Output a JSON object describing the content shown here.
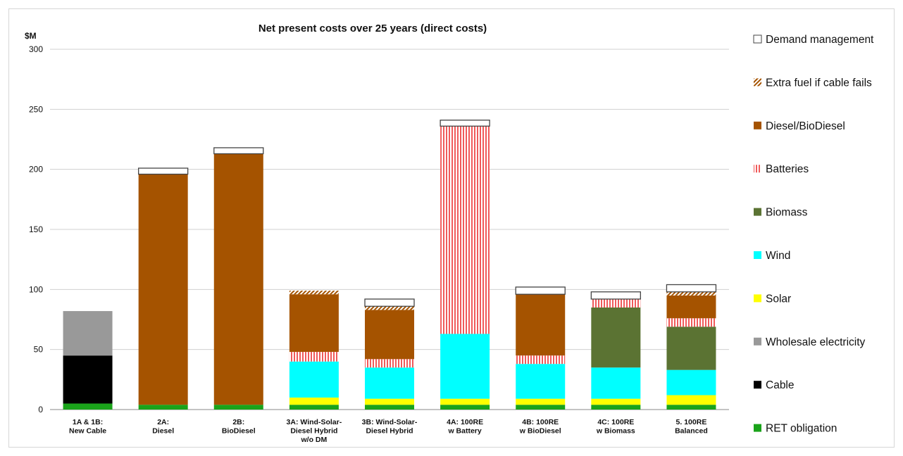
{
  "chart_data": {
    "type": "bar",
    "stacked": true,
    "title": "Net present costs over 25 years (direct costs)",
    "ylabel": "$M",
    "xlabel": "",
    "ylim": [
      0,
      300
    ],
    "yticks": [
      0,
      50,
      100,
      150,
      200,
      250,
      300
    ],
    "grid": true,
    "legend_position": "right",
    "categories": [
      [
        "1A & 1B:",
        "New Cable"
      ],
      [
        "2A:",
        "Diesel"
      ],
      [
        "2B:",
        "BioDiesel"
      ],
      [
        "3A: Wind-Solar-",
        "Diesel Hybrid",
        "w/o DM"
      ],
      [
        "3B: Wind-Solar-",
        "Diesel Hybrid"
      ],
      [
        "4A: 100RE",
        "w Battery"
      ],
      [
        "4B: 100RE",
        "w BioDiesel"
      ],
      [
        "4C: 100RE",
        "w Biomass"
      ],
      [
        "5. 100RE",
        "Balanced"
      ]
    ],
    "series": [
      {
        "name": "RET obligation",
        "color": "#1aa31a",
        "pattern": "solid",
        "values": [
          5,
          4,
          4,
          4,
          4,
          4,
          4,
          4,
          4
        ]
      },
      {
        "name": "Cable",
        "color": "#000000",
        "pattern": "solid",
        "values": [
          40,
          0,
          0,
          0,
          0,
          0,
          0,
          0,
          0
        ]
      },
      {
        "name": "Wholesale electricity",
        "color": "#999999",
        "pattern": "solid",
        "values": [
          37,
          0,
          0,
          0,
          0,
          0,
          0,
          0,
          0
        ]
      },
      {
        "name": "Solar",
        "color": "#ffff00",
        "pattern": "solid",
        "values": [
          0,
          0,
          0,
          6,
          5,
          5,
          5,
          5,
          8
        ]
      },
      {
        "name": "Wind",
        "color": "#00ffff",
        "pattern": "solid",
        "values": [
          0,
          0,
          0,
          30,
          26,
          54,
          29,
          26,
          21
        ]
      },
      {
        "name": "Biomass",
        "color": "#5b7333",
        "pattern": "solid",
        "values": [
          0,
          0,
          0,
          0,
          0,
          0,
          0,
          50,
          36
        ]
      },
      {
        "name": "Batteries",
        "color": "#f05a5a",
        "pattern": "vstripes",
        "values": [
          0,
          0,
          0,
          8,
          7,
          173,
          7,
          7,
          7
        ]
      },
      {
        "name": "Diesel/BioDiesel",
        "color": "#a55300",
        "pattern": "solid",
        "values": [
          0,
          192,
          209,
          48,
          41,
          0,
          51,
          0,
          19
        ]
      },
      {
        "name": "Extra fuel if cable fails",
        "color": "#a55300",
        "pattern": "diagonal",
        "values": [
          0,
          0,
          0,
          3,
          3,
          0,
          0,
          0,
          3
        ]
      },
      {
        "name": "Demand management",
        "color": "#ffffff",
        "pattern": "outline",
        "values": [
          0,
          5,
          5,
          0,
          6,
          5,
          6,
          6,
          6
        ]
      }
    ]
  }
}
